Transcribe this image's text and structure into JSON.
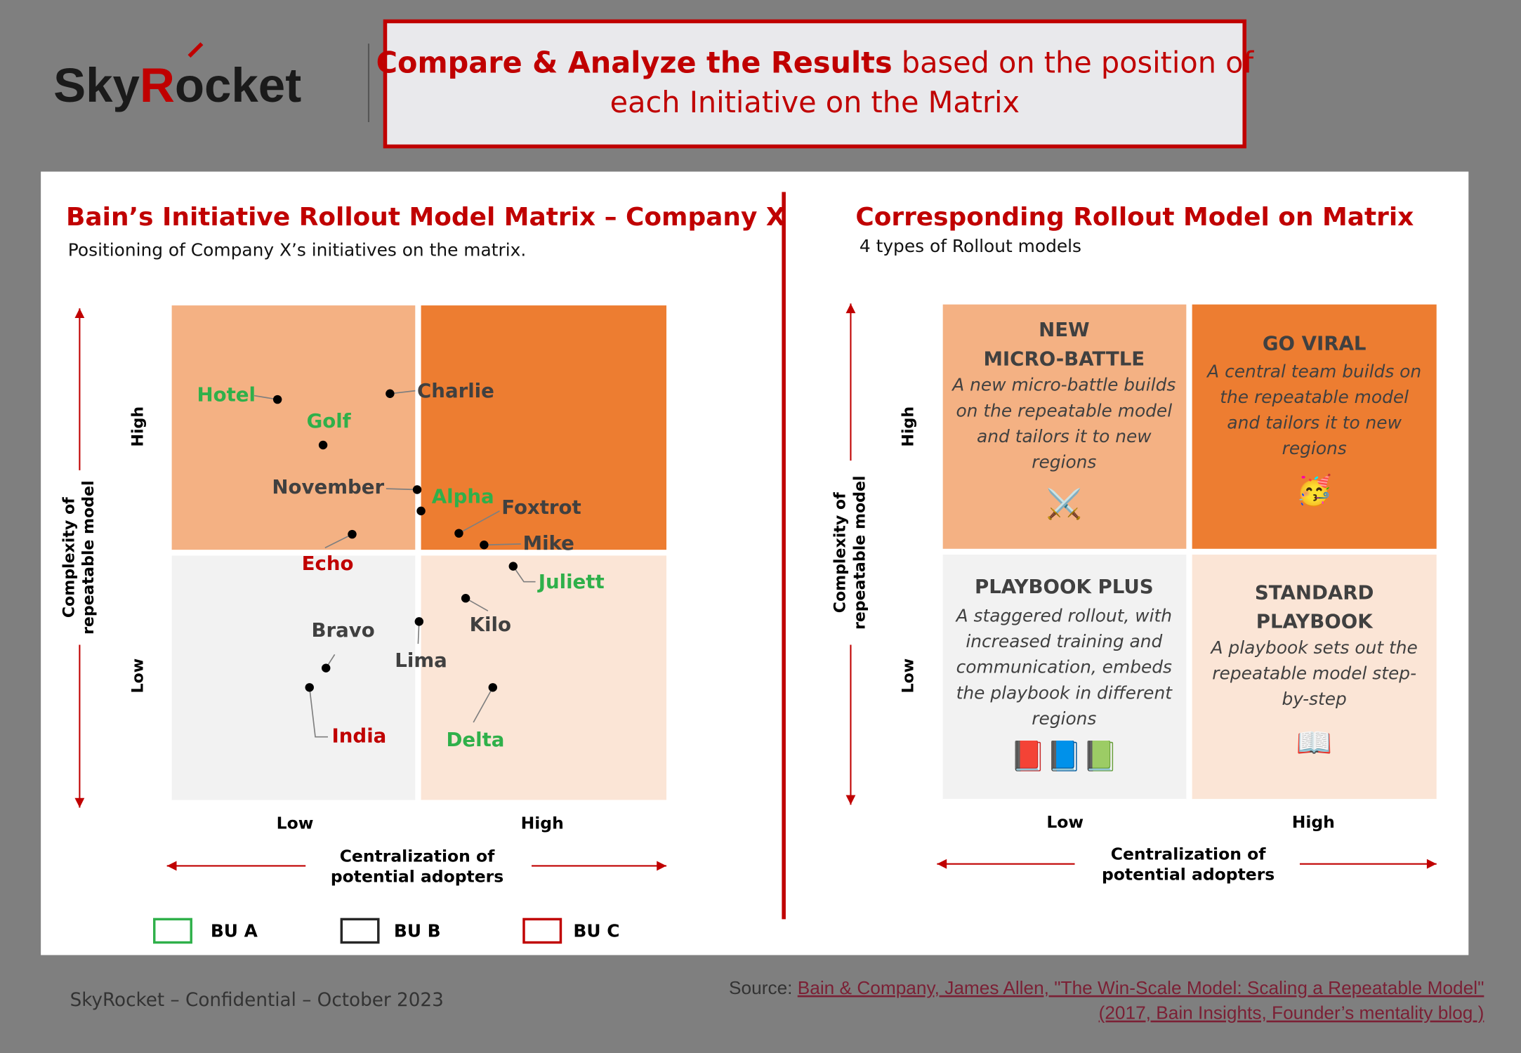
{
  "header": {
    "logo": [
      "Sky",
      "R",
      "ocket"
    ],
    "title_bold": "Compare & Analyze the Results",
    "title_rest": " based on the position of",
    "title_line_2": "each Initiative on the Matrix"
  },
  "left": {
    "title": "Bain’s Initiative Rollout Model Matrix – Company X",
    "subtitle": "Positioning of Company X’s initiatives on the matrix.",
    "y_axis_label": [
      "Complexity of",
      "repeatable model"
    ],
    "y_high": "High",
    "y_low": "Low",
    "x_low": "Low",
    "x_high": "High",
    "x_axis_label": [
      "Centralization of",
      "potential adopters"
    ],
    "initiatives": [
      {
        "label": "Hotel",
        "bu": "BU A"
      },
      {
        "label": "Golf",
        "bu": "BU A"
      },
      {
        "label": "Charlie",
        "bu": "BU B"
      },
      {
        "label": "November",
        "bu": "BU B"
      },
      {
        "label": "Alpha",
        "bu": "BU A"
      },
      {
        "label": "Foxtrot",
        "bu": "BU B"
      },
      {
        "label": "Echo",
        "bu": "BU C"
      },
      {
        "label": "Mike",
        "bu": "BU B"
      },
      {
        "label": "Juliett",
        "bu": "BU A"
      },
      {
        "label": "Kilo",
        "bu": "BU B"
      },
      {
        "label": "Lima",
        "bu": "BU B"
      },
      {
        "label": "Bravo",
        "bu": "BU B"
      },
      {
        "label": "India",
        "bu": "BU C"
      },
      {
        "label": "Delta",
        "bu": "BU A"
      }
    ],
    "legend": [
      {
        "label": "BU A",
        "color": "#2fb04a"
      },
      {
        "label": "BU B",
        "color": "#262626"
      },
      {
        "label": "BU C",
        "color": "#c00000"
      }
    ]
  },
  "right": {
    "title": "Corresponding Rollout Model on Matrix",
    "subtitle": "4 types of Rollout models",
    "y_axis_label": [
      "Complexity of",
      "repeatable model"
    ],
    "y_high": "High",
    "y_low": "Low",
    "x_low": "Low",
    "x_high": "High",
    "x_axis_label": [
      "Centralization of",
      "potential adopters"
    ],
    "quadrants": [
      {
        "heading": [
          "NEW",
          "MICRO-BATTLE"
        ],
        "description": [
          "A new micro-battle builds",
          "on the repeatable model",
          "and tailors it to new",
          "regions"
        ],
        "icon": "⚔️"
      },
      {
        "heading": [
          "GO VIRAL"
        ],
        "description": [
          "A central team builds on",
          "the repeatable model",
          "and tailors it to new",
          "regions"
        ],
        "icon": "🥳"
      },
      {
        "heading": [
          "PLAYBOOK PLUS"
        ],
        "description": [
          "A staggered rollout, with",
          "increased training and",
          "communication, embeds",
          "the playbook in different",
          "regions"
        ],
        "icon": "📕📘📗"
      },
      {
        "heading": [
          "STANDARD",
          "PLAYBOOK"
        ],
        "description": [
          "A playbook sets out the",
          "repeatable model step-",
          "by-step"
        ],
        "icon": "📖"
      }
    ]
  },
  "footer": {
    "confidential": "SkyRocket – Confidential – October 2023",
    "source_prefix": "Source: ",
    "source_line_1": "Bain & Company, James Allen, \"The Win-Scale Model: Scaling a Repeatable Model\"",
    "source_line_2": "(2017, Bain Insights, Founder’s mentality blog )"
  }
}
